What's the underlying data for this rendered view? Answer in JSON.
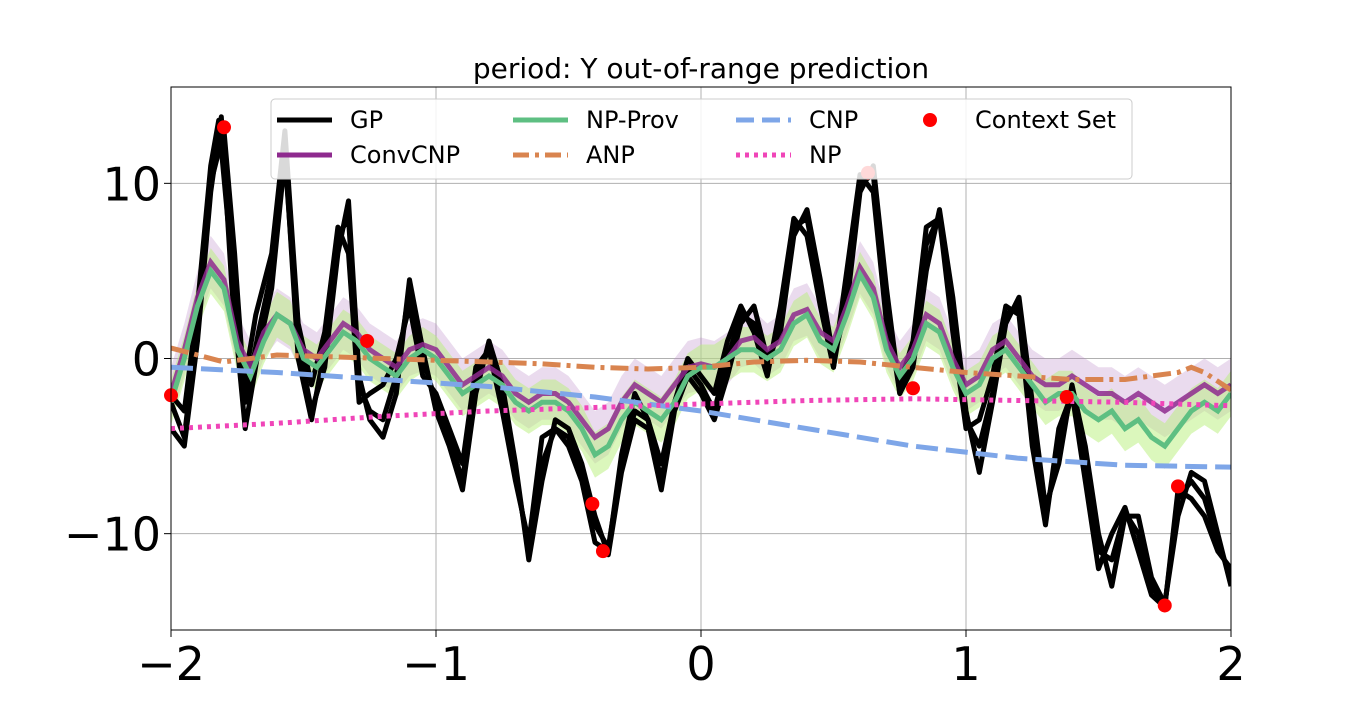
{
  "chart_data": {
    "type": "line",
    "title": "period: Y out-of-range prediction",
    "xlabel": "",
    "ylabel": "",
    "xlim": [
      -2,
      2
    ],
    "ylim": [
      -15.5,
      15.5
    ],
    "grid": true,
    "xticks": [
      -2,
      -1,
      0,
      1,
      2
    ],
    "xtick_labels": [
      "−2",
      "−1",
      "0",
      "1",
      "2"
    ],
    "yticks": [
      -10,
      0,
      10
    ],
    "ytick_labels": [
      "−10",
      "0",
      "10"
    ],
    "legend_position": "top",
    "colors": {
      "gp": "#000000",
      "convcnp": "#8e2a8e",
      "convcnp_band": "#b57cc2",
      "npprov": "#5ebf82",
      "npprov_band": "#b7ef7a",
      "anp": "#d9844f",
      "cnp": "#7ea6e8",
      "np": "#f045b8",
      "context": "#ff0000"
    },
    "legend": [
      {
        "key": "gp",
        "label": " GP",
        "style": "solid"
      },
      {
        "key": "npprov",
        "label": "NP-Prov",
        "style": "solid"
      },
      {
        "key": "cnp",
        "label": "CNP",
        "style": "dashed"
      },
      {
        "key": "context",
        "label": "Context Set",
        "style": "marker"
      },
      {
        "key": "convcnp",
        "label": "ConvCNP",
        "style": "solid"
      },
      {
        "key": "anp",
        "label": "ANP",
        "style": "dashdot"
      },
      {
        "key": "np",
        "label": "NP",
        "style": "dotted"
      }
    ],
    "context_set": {
      "x": [
        -2.0,
        -1.8,
        -1.26,
        -0.41,
        -0.37,
        0.63,
        0.8,
        1.38,
        1.75,
        1.8
      ],
      "y": [
        -2.1,
        13.2,
        1.0,
        -8.3,
        -11.0,
        10.6,
        -1.7,
        -2.2,
        -14.1,
        -7.3
      ]
    },
    "gp_samples": [
      {
        "name": "GP sample 1",
        "x": [
          -2.0,
          -1.95,
          -1.9,
          -1.85,
          -1.82,
          -1.78,
          -1.73,
          -1.68,
          -1.62,
          -1.57,
          -1.52,
          -1.47,
          -1.42,
          -1.37,
          -1.33,
          -1.29,
          -1.25,
          -1.2,
          -1.15,
          -1.1,
          -1.05,
          -1.0,
          -0.95,
          -0.9,
          -0.85,
          -0.8,
          -0.75,
          -0.7,
          -0.65,
          -0.6,
          -0.55,
          -0.5,
          -0.45,
          -0.4,
          -0.35,
          -0.3,
          -0.25,
          -0.2,
          -0.15,
          -0.1,
          -0.05,
          0.0,
          0.05,
          0.1,
          0.15,
          0.2,
          0.25,
          0.3,
          0.35,
          0.4,
          0.45,
          0.5,
          0.55,
          0.6,
          0.65,
          0.7,
          0.75,
          0.8,
          0.85,
          0.9,
          0.95,
          1.0,
          1.05,
          1.1,
          1.15,
          1.2,
          1.25,
          1.3,
          1.35,
          1.4,
          1.45,
          1.5,
          1.55,
          1.6,
          1.65,
          1.7,
          1.75,
          1.8,
          1.85,
          1.9,
          1.95,
          2.0
        ],
        "y": [
          -2.1,
          -3.0,
          3.0,
          11.0,
          13.6,
          7.0,
          -2.0,
          2.5,
          6.0,
          13.0,
          2.0,
          -1.5,
          1.5,
          7.5,
          6.0,
          -2.5,
          -2.0,
          -1.5,
          0.0,
          3.0,
          -1.0,
          -2.0,
          -4.0,
          -6.0,
          -0.5,
          0.5,
          -3.0,
          -7.0,
          -10.5,
          -4.5,
          -4.0,
          -5.0,
          -7.0,
          -10.5,
          -11.0,
          -5.5,
          -2.0,
          -3.5,
          -6.0,
          -2.5,
          0.0,
          -1.0,
          -2.0,
          1.0,
          3.0,
          1.5,
          -1.0,
          3.0,
          8.0,
          7.0,
          3.0,
          -0.5,
          5.0,
          10.5,
          9.5,
          2.0,
          -1.5,
          1.0,
          7.5,
          8.0,
          1.5,
          -4.0,
          -3.5,
          -1.0,
          3.0,
          2.5,
          -5.0,
          -9.5,
          -4.0,
          -2.0,
          -7.0,
          -12.0,
          -10.0,
          -8.5,
          -11.0,
          -13.5,
          -14.2,
          -7.5,
          -8.0,
          -9.0,
          -11.0,
          -12.0
        ]
      },
      {
        "name": "GP sample 2",
        "x": [
          -2.0,
          -1.95,
          -1.9,
          -1.85,
          -1.81,
          -1.77,
          -1.72,
          -1.67,
          -1.62,
          -1.57,
          -1.52,
          -1.47,
          -1.42,
          -1.37,
          -1.33,
          -1.29,
          -1.25,
          -1.2,
          -1.15,
          -1.1,
          -1.05,
          -1.0,
          -0.95,
          -0.9,
          -0.85,
          -0.8,
          -0.75,
          -0.7,
          -0.65,
          -0.6,
          -0.55,
          -0.5,
          -0.45,
          -0.4,
          -0.35,
          -0.3,
          -0.25,
          -0.2,
          -0.15,
          -0.1,
          -0.05,
          0.0,
          0.05,
          0.1,
          0.15,
          0.2,
          0.25,
          0.3,
          0.35,
          0.4,
          0.45,
          0.5,
          0.55,
          0.6,
          0.65,
          0.7,
          0.75,
          0.8,
          0.85,
          0.9,
          0.95,
          1.0,
          1.05,
          1.1,
          1.15,
          1.2,
          1.25,
          1.3,
          1.35,
          1.4,
          1.45,
          1.5,
          1.55,
          1.6,
          1.65,
          1.7,
          1.75,
          1.8,
          1.85,
          1.9,
          1.95,
          2.0
        ],
        "y": [
          -4.0,
          -5.0,
          1.0,
          9.5,
          13.8,
          4.0,
          -4.0,
          0.5,
          4.0,
          11.5,
          1.0,
          -3.0,
          -0.5,
          6.0,
          9.0,
          -1.0,
          -3.5,
          -4.5,
          -2.0,
          4.5,
          0.5,
          -3.0,
          -5.0,
          -7.5,
          -2.0,
          1.0,
          -1.5,
          -6.0,
          -11.5,
          -7.0,
          -3.5,
          -4.0,
          -6.0,
          -9.0,
          -11.2,
          -6.5,
          -3.5,
          -4.0,
          -7.5,
          -3.0,
          -1.0,
          -2.0,
          -3.5,
          -1.0,
          2.0,
          3.0,
          0.0,
          1.5,
          7.0,
          8.5,
          4.5,
          0.0,
          3.0,
          9.5,
          11.0,
          4.0,
          -2.0,
          -0.5,
          5.0,
          8.5,
          3.5,
          -3.0,
          -6.5,
          -2.5,
          2.0,
          3.5,
          -2.5,
          -8.5,
          -6.0,
          -1.5,
          -5.0,
          -10.0,
          -13.0,
          -9.0,
          -9.0,
          -12.5,
          -14.0,
          -9.0,
          -6.5,
          -7.0,
          -10.0,
          -13.0
        ]
      },
      {
        "name": "GP sample 3",
        "x": [
          -2.0,
          -1.95,
          -1.9,
          -1.85,
          -1.8,
          -1.76,
          -1.72,
          -1.67,
          -1.62,
          -1.57,
          -1.52,
          -1.47,
          -1.42,
          -1.37,
          -1.33,
          -1.29,
          -1.25,
          -1.2,
          -1.15,
          -1.1,
          -1.05,
          -1.0,
          -0.95,
          -0.9,
          -0.85,
          -0.8,
          -0.75,
          -0.7,
          -0.65,
          -0.6,
          -0.55,
          -0.5,
          -0.45,
          -0.4,
          -0.35,
          -0.3,
          -0.25,
          -0.2,
          -0.15,
          -0.1,
          -0.05,
          0.0,
          0.05,
          0.1,
          0.15,
          0.2,
          0.25,
          0.3,
          0.35,
          0.4,
          0.45,
          0.5,
          0.55,
          0.6,
          0.65,
          0.7,
          0.75,
          0.8,
          0.85,
          0.9,
          0.95,
          1.0,
          1.05,
          1.1,
          1.15,
          1.2,
          1.25,
          1.3,
          1.35,
          1.4,
          1.45,
          1.5,
          1.55,
          1.6,
          1.65,
          1.7,
          1.75,
          1.8,
          1.85,
          1.9,
          1.95,
          2.0
        ],
        "y": [
          -2.5,
          -4.5,
          2.0,
          10.0,
          13.0,
          6.0,
          -2.5,
          1.5,
          5.0,
          12.0,
          0.0,
          -3.5,
          0.5,
          7.0,
          8.0,
          -1.5,
          -3.0,
          -3.5,
          -1.0,
          4.0,
          0.0,
          -2.5,
          -4.5,
          -7.0,
          -1.0,
          0.5,
          -2.0,
          -6.5,
          -11.0,
          -6.0,
          -4.0,
          -4.5,
          -6.5,
          -9.5,
          -10.8,
          -6.0,
          -3.0,
          -3.5,
          -7.0,
          -2.8,
          -0.5,
          -1.5,
          -3.0,
          0.0,
          2.5,
          2.0,
          -0.5,
          2.0,
          7.5,
          8.0,
          4.0,
          -0.5,
          4.0,
          10.0,
          10.5,
          3.0,
          -2.0,
          0.0,
          6.5,
          8.2,
          2.5,
          -3.5,
          -5.0,
          -2.0,
          2.5,
          3.0,
          -3.5,
          -9.0,
          -5.0,
          -2.0,
          -6.0,
          -11.0,
          -11.5,
          -8.8,
          -10.0,
          -13.0,
          -14.1,
          -8.0,
          -7.0,
          -8.0,
          -10.5,
          -12.5
        ]
      }
    ],
    "convcnp_mean": {
      "x": [
        -2.0,
        -1.95,
        -1.9,
        -1.85,
        -1.8,
        -1.75,
        -1.7,
        -1.65,
        -1.6,
        -1.55,
        -1.5,
        -1.45,
        -1.4,
        -1.35,
        -1.3,
        -1.25,
        -1.2,
        -1.15,
        -1.1,
        -1.05,
        -1.0,
        -0.95,
        -0.9,
        -0.85,
        -0.8,
        -0.75,
        -0.7,
        -0.65,
        -0.6,
        -0.55,
        -0.5,
        -0.45,
        -0.4,
        -0.35,
        -0.3,
        -0.25,
        -0.2,
        -0.15,
        -0.1,
        -0.05,
        0.0,
        0.05,
        0.1,
        0.15,
        0.2,
        0.25,
        0.3,
        0.35,
        0.4,
        0.45,
        0.5,
        0.55,
        0.6,
        0.65,
        0.7,
        0.75,
        0.8,
        0.85,
        0.9,
        0.95,
        1.0,
        1.05,
        1.1,
        1.15,
        1.2,
        1.25,
        1.3,
        1.35,
        1.4,
        1.45,
        1.5,
        1.55,
        1.6,
        1.65,
        1.7,
        1.75,
        1.8,
        1.85,
        1.9,
        1.95,
        2.0
      ],
      "y": [
        -2.0,
        0.5,
        3.5,
        5.5,
        4.5,
        1.0,
        -0.5,
        1.5,
        2.5,
        2.0,
        0.5,
        0.0,
        1.0,
        2.0,
        1.5,
        0.5,
        0.0,
        -0.5,
        0.5,
        0.8,
        0.5,
        -0.5,
        -1.5,
        -1.0,
        -0.5,
        -1.0,
        -2.0,
        -2.5,
        -2.0,
        -2.0,
        -2.5,
        -3.5,
        -4.5,
        -4.0,
        -2.5,
        -1.5,
        -2.0,
        -2.5,
        -1.5,
        -0.5,
        -0.3,
        -0.5,
        0.0,
        1.0,
        1.2,
        0.5,
        1.0,
        2.5,
        2.8,
        1.5,
        1.0,
        3.0,
        5.2,
        4.0,
        1.0,
        -0.5,
        0.5,
        2.5,
        2.0,
        0.0,
        -1.5,
        -1.0,
        0.5,
        1.0,
        0.0,
        -1.0,
        -1.5,
        -1.5,
        -1.0,
        -1.5,
        -2.0,
        -2.0,
        -2.5,
        -2.0,
        -2.5,
        -3.0,
        -2.5,
        -2.0,
        -1.5,
        -2.0,
        -1.5
      ]
    },
    "npprov_mean": {
      "x": [
        -2.0,
        -1.95,
        -1.9,
        -1.85,
        -1.8,
        -1.75,
        -1.7,
        -1.65,
        -1.6,
        -1.55,
        -1.5,
        -1.45,
        -1.4,
        -1.35,
        -1.3,
        -1.25,
        -1.2,
        -1.15,
        -1.1,
        -1.05,
        -1.0,
        -0.95,
        -0.9,
        -0.85,
        -0.8,
        -0.75,
        -0.7,
        -0.65,
        -0.6,
        -0.55,
        -0.5,
        -0.45,
        -0.4,
        -0.35,
        -0.3,
        -0.25,
        -0.2,
        -0.15,
        -0.1,
        -0.05,
        0.0,
        0.05,
        0.1,
        0.15,
        0.2,
        0.25,
        0.3,
        0.35,
        0.4,
        0.45,
        0.5,
        0.55,
        0.6,
        0.65,
        0.7,
        0.75,
        0.8,
        0.85,
        0.9,
        0.95,
        1.0,
        1.05,
        1.1,
        1.15,
        1.2,
        1.25,
        1.3,
        1.35,
        1.4,
        1.45,
        1.5,
        1.55,
        1.6,
        1.65,
        1.7,
        1.75,
        1.8,
        1.85,
        1.9,
        1.95,
        2.0
      ],
      "y": [
        -2.5,
        0.0,
        3.0,
        5.0,
        4.0,
        0.5,
        -1.0,
        1.0,
        2.5,
        2.0,
        0.0,
        -0.5,
        0.5,
        1.5,
        1.0,
        0.0,
        -0.5,
        -1.0,
        0.0,
        0.5,
        0.0,
        -1.0,
        -2.0,
        -1.5,
        -1.0,
        -1.5,
        -2.5,
        -3.0,
        -2.5,
        -2.5,
        -3.0,
        -4.0,
        -5.5,
        -5.0,
        -3.5,
        -2.5,
        -3.0,
        -3.5,
        -2.5,
        -1.0,
        -0.5,
        -0.5,
        0.0,
        0.5,
        0.5,
        0.0,
        0.5,
        2.0,
        2.5,
        1.0,
        0.5,
        2.5,
        4.8,
        3.5,
        0.5,
        -1.0,
        0.0,
        2.0,
        1.5,
        -0.5,
        -2.0,
        -1.5,
        0.0,
        0.5,
        -0.5,
        -1.5,
        -2.5,
        -2.0,
        -2.0,
        -3.0,
        -3.5,
        -3.0,
        -4.0,
        -3.5,
        -4.5,
        -5.0,
        -4.0,
        -3.0,
        -2.5,
        -3.0,
        -2.0
      ]
    },
    "anp_mean": {
      "x": [
        -2.0,
        -1.8,
        -1.6,
        -1.4,
        -1.2,
        -1.0,
        -0.8,
        -0.6,
        -0.4,
        -0.2,
        0.0,
        0.2,
        0.4,
        0.6,
        0.8,
        1.0,
        1.2,
        1.4,
        1.6,
        1.7,
        1.8,
        1.85,
        1.9,
        2.0
      ],
      "y": [
        0.6,
        -0.2,
        0.2,
        0.1,
        0.0,
        -0.1,
        -0.2,
        -0.3,
        -0.5,
        -0.6,
        -0.5,
        -0.2,
        -0.1,
        -0.2,
        -0.5,
        -0.8,
        -1.0,
        -1.2,
        -1.2,
        -1.0,
        -0.8,
        -0.5,
        -0.8,
        -1.8
      ]
    },
    "cnp_mean": {
      "x": [
        -2.0,
        -1.6,
        -1.2,
        -0.8,
        -0.4,
        0.0,
        0.4,
        0.8,
        1.2,
        1.6,
        2.0
      ],
      "y": [
        -0.5,
        -0.8,
        -1.2,
        -1.6,
        -2.2,
        -3.0,
        -4.0,
        -5.0,
        -5.7,
        -6.1,
        -6.2
      ]
    },
    "np_mean": {
      "x": [
        -2.0,
        -1.6,
        -1.2,
        -0.8,
        -0.4,
        0.0,
        0.4,
        0.8,
        1.2,
        1.6,
        2.0
      ],
      "y": [
        -4.0,
        -3.7,
        -3.3,
        -3.0,
        -2.8,
        -2.6,
        -2.4,
        -2.3,
        -2.4,
        -2.5,
        -2.7
      ]
    }
  }
}
